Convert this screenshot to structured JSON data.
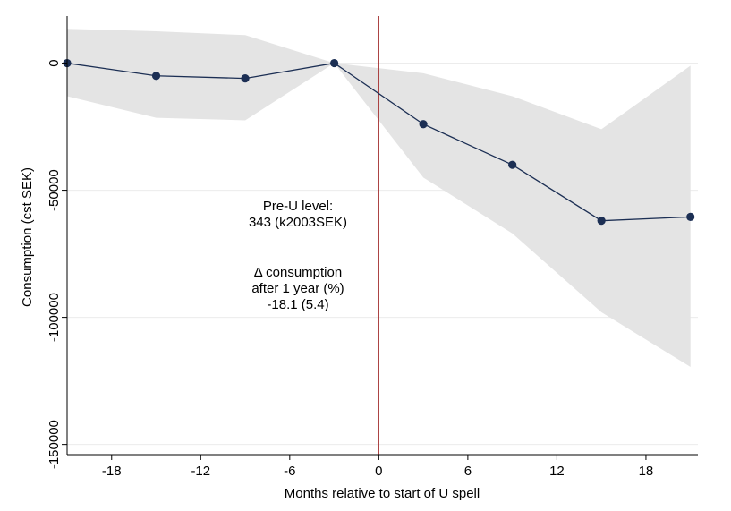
{
  "chart_data": {
    "type": "line",
    "title": "",
    "xlabel": "Months relative to start of U spell",
    "ylabel": "Consumption (cst SEK)",
    "xlim": [
      -21,
      21.5
    ],
    "ylim": [
      -154000,
      18500
    ],
    "x_ticks": [
      -18,
      -12,
      -6,
      0,
      6,
      12,
      18
    ],
    "y_ticks": [
      0,
      -50000,
      -100000,
      -150000
    ],
    "x_tick_labels": [
      "-18",
      "-12",
      "-6",
      "0",
      "6",
      "12",
      "18"
    ],
    "y_tick_labels": [
      "0",
      "-50000",
      "-100000",
      "-150000"
    ],
    "grid": true,
    "legend": "none",
    "vertical_line_x": 0,
    "series": [
      {
        "x": [
          -21,
          -15,
          -9,
          -3,
          3,
          9,
          15,
          21
        ],
        "values": [
          0,
          -5000,
          -6000,
          0,
          -24000,
          -40000,
          -62000,
          -60500
        ],
        "ci_lower": [
          -13000,
          -21500,
          -22500,
          0,
          -45000,
          -67000,
          -98000,
          -119500
        ],
        "ci_upper": [
          13500,
          12500,
          11000,
          0,
          -4000,
          -13000,
          -26000,
          -1000
        ]
      }
    ],
    "annotations": [
      {
        "lines": [
          "Pre-U level:",
          "343 (k2003SEK)"
        ]
      },
      {
        "lines": [
          "Δ consumption",
          "after 1 year (%)",
          "-18.1 (5.4)"
        ]
      }
    ],
    "colors": {
      "band": "#e4e4e4",
      "line": "#1c2f54",
      "marker": "#1c2f54",
      "vline": "#a83a3a",
      "grid": "#ececec",
      "axis": "#000000"
    }
  }
}
